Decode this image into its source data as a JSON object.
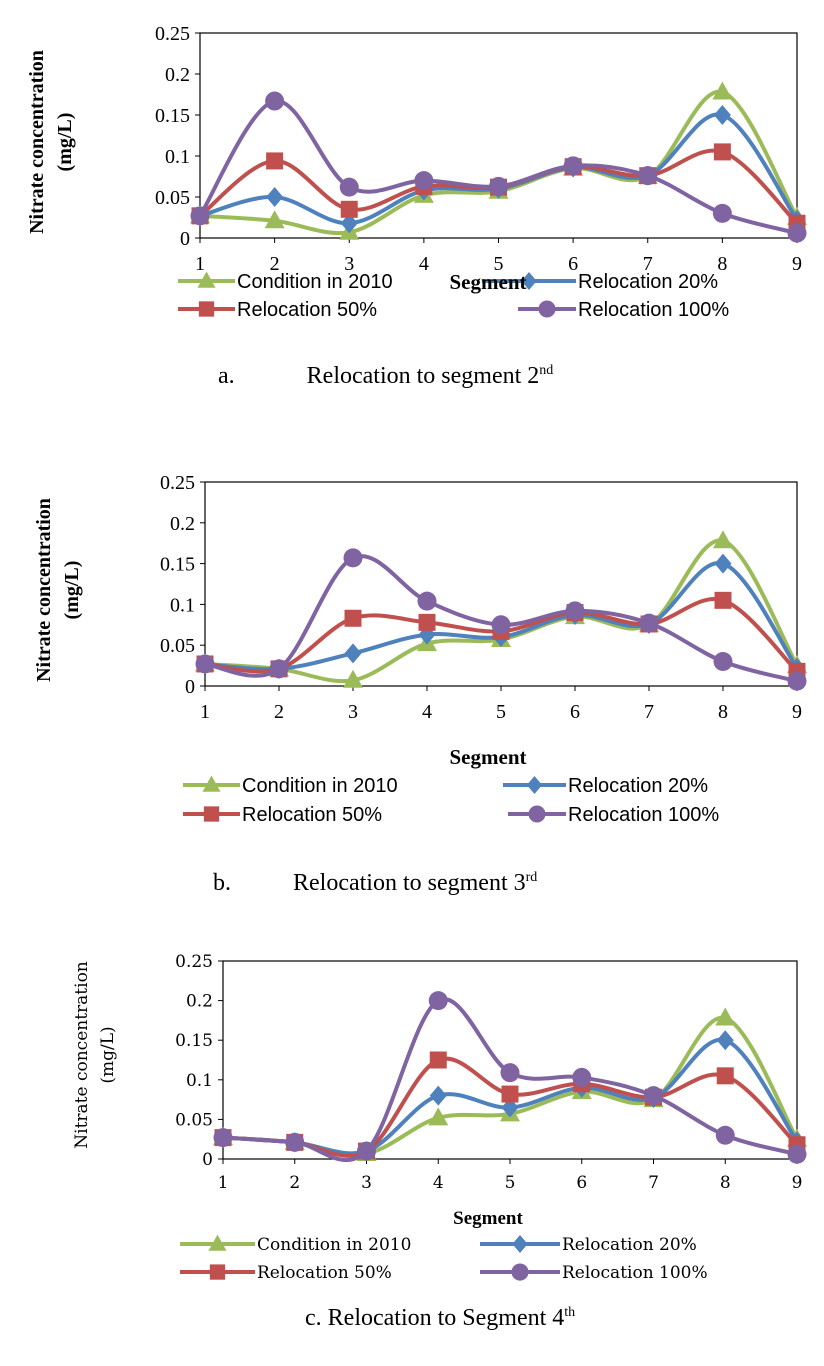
{
  "colors": {
    "condition_2010": "#9BBB59",
    "relocation_20": "#4F81BD",
    "relocation_50": "#C0504D",
    "relocation_100": "#8064A2",
    "axis": "#000000",
    "background": "#FFFFFF"
  },
  "chart_data": [
    {
      "type": "line",
      "caption": {
        "letter": "a.",
        "text": "Relocation to segment 2",
        "sup": "nd"
      },
      "xlabel": "Segment",
      "ylabel_line1": "Nitrate concentration",
      "ylabel_line2": "(mg/L)",
      "x": [
        1,
        2,
        3,
        4,
        5,
        6,
        7,
        8,
        9
      ],
      "xticks": [
        "1",
        "2",
        "3",
        "4",
        "5",
        "6",
        "7",
        "8",
        "9"
      ],
      "ylim": [
        0,
        0.25
      ],
      "yticks": [
        "0",
        "0.05",
        "0.1",
        "0.15",
        "0.2",
        "0.25"
      ],
      "grid": false,
      "smooth": true,
      "legend_position": "bottom",
      "series": [
        {
          "name": "Condition in 2010",
          "marker": "triangle",
          "color": "#9BBB59",
          "values": [
            0.027,
            0.021,
            0.007,
            0.052,
            0.057,
            0.085,
            0.075,
            0.178,
            0.025
          ]
        },
        {
          "name": "Relocation 20%",
          "marker": "diamond",
          "color": "#4F81BD",
          "values": [
            0.027,
            0.05,
            0.018,
            0.058,
            0.06,
            0.086,
            0.076,
            0.15,
            0.022
          ]
        },
        {
          "name": "Relocation 50%",
          "marker": "square",
          "color": "#C0504D",
          "values": [
            0.027,
            0.094,
            0.035,
            0.063,
            0.062,
            0.087,
            0.076,
            0.105,
            0.018
          ]
        },
        {
          "name": "Relocation 100%",
          "marker": "circle",
          "color": "#8064A2",
          "values": [
            0.027,
            0.167,
            0.062,
            0.07,
            0.063,
            0.088,
            0.076,
            0.03,
            0.006
          ]
        }
      ]
    },
    {
      "type": "line",
      "caption": {
        "letter": "b.",
        "text": "Relocation to segment 3",
        "sup": "rd"
      },
      "xlabel": "Segment",
      "ylabel_line1": "Nitrate concentration",
      "ylabel_line2": "(mg/L)",
      "x": [
        1,
        2,
        3,
        4,
        5,
        6,
        7,
        8,
        9
      ],
      "xticks": [
        "1",
        "2",
        "3",
        "4",
        "5",
        "6",
        "7",
        "8",
        "9"
      ],
      "ylim": [
        0,
        0.25
      ],
      "yticks": [
        "0",
        "0.05",
        "0.1",
        "0.15",
        "0.2",
        "0.25"
      ],
      "grid": false,
      "smooth": true,
      "legend_position": "bottom",
      "series": [
        {
          "name": "Condition in 2010",
          "marker": "triangle",
          "color": "#9BBB59",
          "values": [
            0.027,
            0.021,
            0.007,
            0.052,
            0.057,
            0.085,
            0.075,
            0.178,
            0.025
          ]
        },
        {
          "name": "Relocation 20%",
          "marker": "diamond",
          "color": "#4F81BD",
          "values": [
            0.027,
            0.021,
            0.04,
            0.063,
            0.06,
            0.087,
            0.076,
            0.15,
            0.022
          ]
        },
        {
          "name": "Relocation 50%",
          "marker": "square",
          "color": "#C0504D",
          "values": [
            0.027,
            0.021,
            0.083,
            0.078,
            0.067,
            0.09,
            0.076,
            0.105,
            0.018
          ]
        },
        {
          "name": "Relocation 100%",
          "marker": "circle",
          "color": "#8064A2",
          "values": [
            0.027,
            0.021,
            0.157,
            0.104,
            0.075,
            0.092,
            0.077,
            0.03,
            0.006
          ]
        }
      ]
    },
    {
      "type": "line",
      "caption": {
        "letter": "c.",
        "text": "Relocation to Segment 4",
        "sup": "th"
      },
      "xlabel": "Segment",
      "ylabel_line1": "Nitrate concentration",
      "ylabel_line2": "(mg/L)",
      "x": [
        1,
        2,
        3,
        4,
        5,
        6,
        7,
        8,
        9
      ],
      "xticks": [
        "1",
        "2",
        "3",
        "4",
        "5",
        "6",
        "7",
        "8",
        "9"
      ],
      "ylim": [
        0,
        0.25
      ],
      "yticks": [
        "0",
        "0.05",
        "0.1",
        "0.15",
        "0.2",
        "0.25"
      ],
      "grid": false,
      "smooth": true,
      "legend_position": "bottom",
      "series": [
        {
          "name": "Condition in 2010",
          "marker": "triangle",
          "color": "#9BBB59",
          "values": [
            0.027,
            0.021,
            0.007,
            0.052,
            0.057,
            0.085,
            0.075,
            0.178,
            0.025
          ]
        },
        {
          "name": "Relocation 20%",
          "marker": "diamond",
          "color": "#4F81BD",
          "values": [
            0.027,
            0.021,
            0.01,
            0.08,
            0.065,
            0.09,
            0.077,
            0.15,
            0.022
          ]
        },
        {
          "name": "Relocation 50%",
          "marker": "square",
          "color": "#C0504D",
          "values": [
            0.027,
            0.021,
            0.01,
            0.125,
            0.082,
            0.095,
            0.078,
            0.105,
            0.018
          ]
        },
        {
          "name": "Relocation 100%",
          "marker": "circle",
          "color": "#8064A2",
          "values": [
            0.027,
            0.021,
            0.01,
            0.2,
            0.109,
            0.103,
            0.08,
            0.03,
            0.006
          ]
        }
      ]
    }
  ]
}
